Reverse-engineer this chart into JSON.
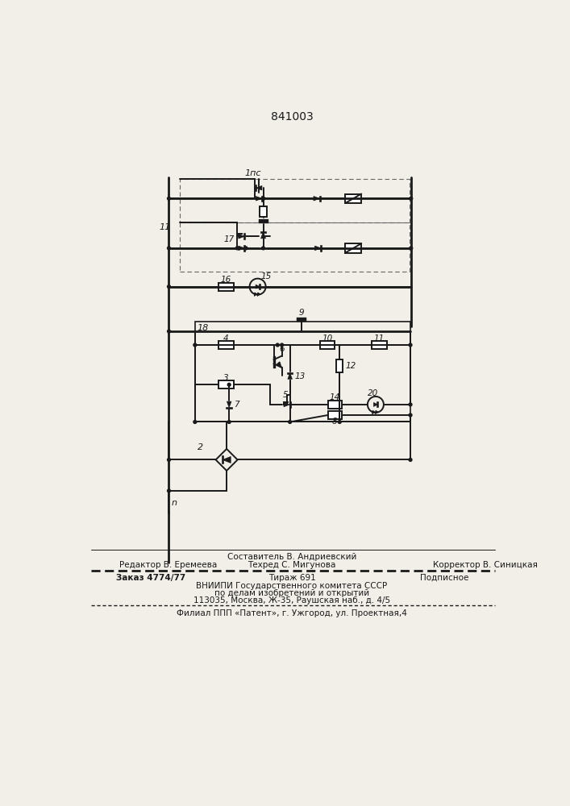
{
  "title": "841003",
  "bg_color": "#f2efe9",
  "line_color": "#1a1a1a",
  "lw": 1.4,
  "lw2": 2.0,
  "footer": {
    "line1_center": "Составитель В. Андриевский",
    "line2_left": "Редактор В. Еремеева",
    "line2_center": "Техред С. Мигунова",
    "line2_right": "Корректор В. Синицкая",
    "line3_left": "Заказ 4774/77",
    "line3_center": "Тираж 691",
    "line3_right": "Подписное",
    "line4": "ВНИИПИ Государственного комитета СССР",
    "line5": "по делам изобретений и открытий",
    "line6": "113035, Москва, Ж-35, Раушская наб., д. 4/5",
    "line7": "Филиал ППП «Патент», г. Ужгород, ул. Проектная,4"
  }
}
